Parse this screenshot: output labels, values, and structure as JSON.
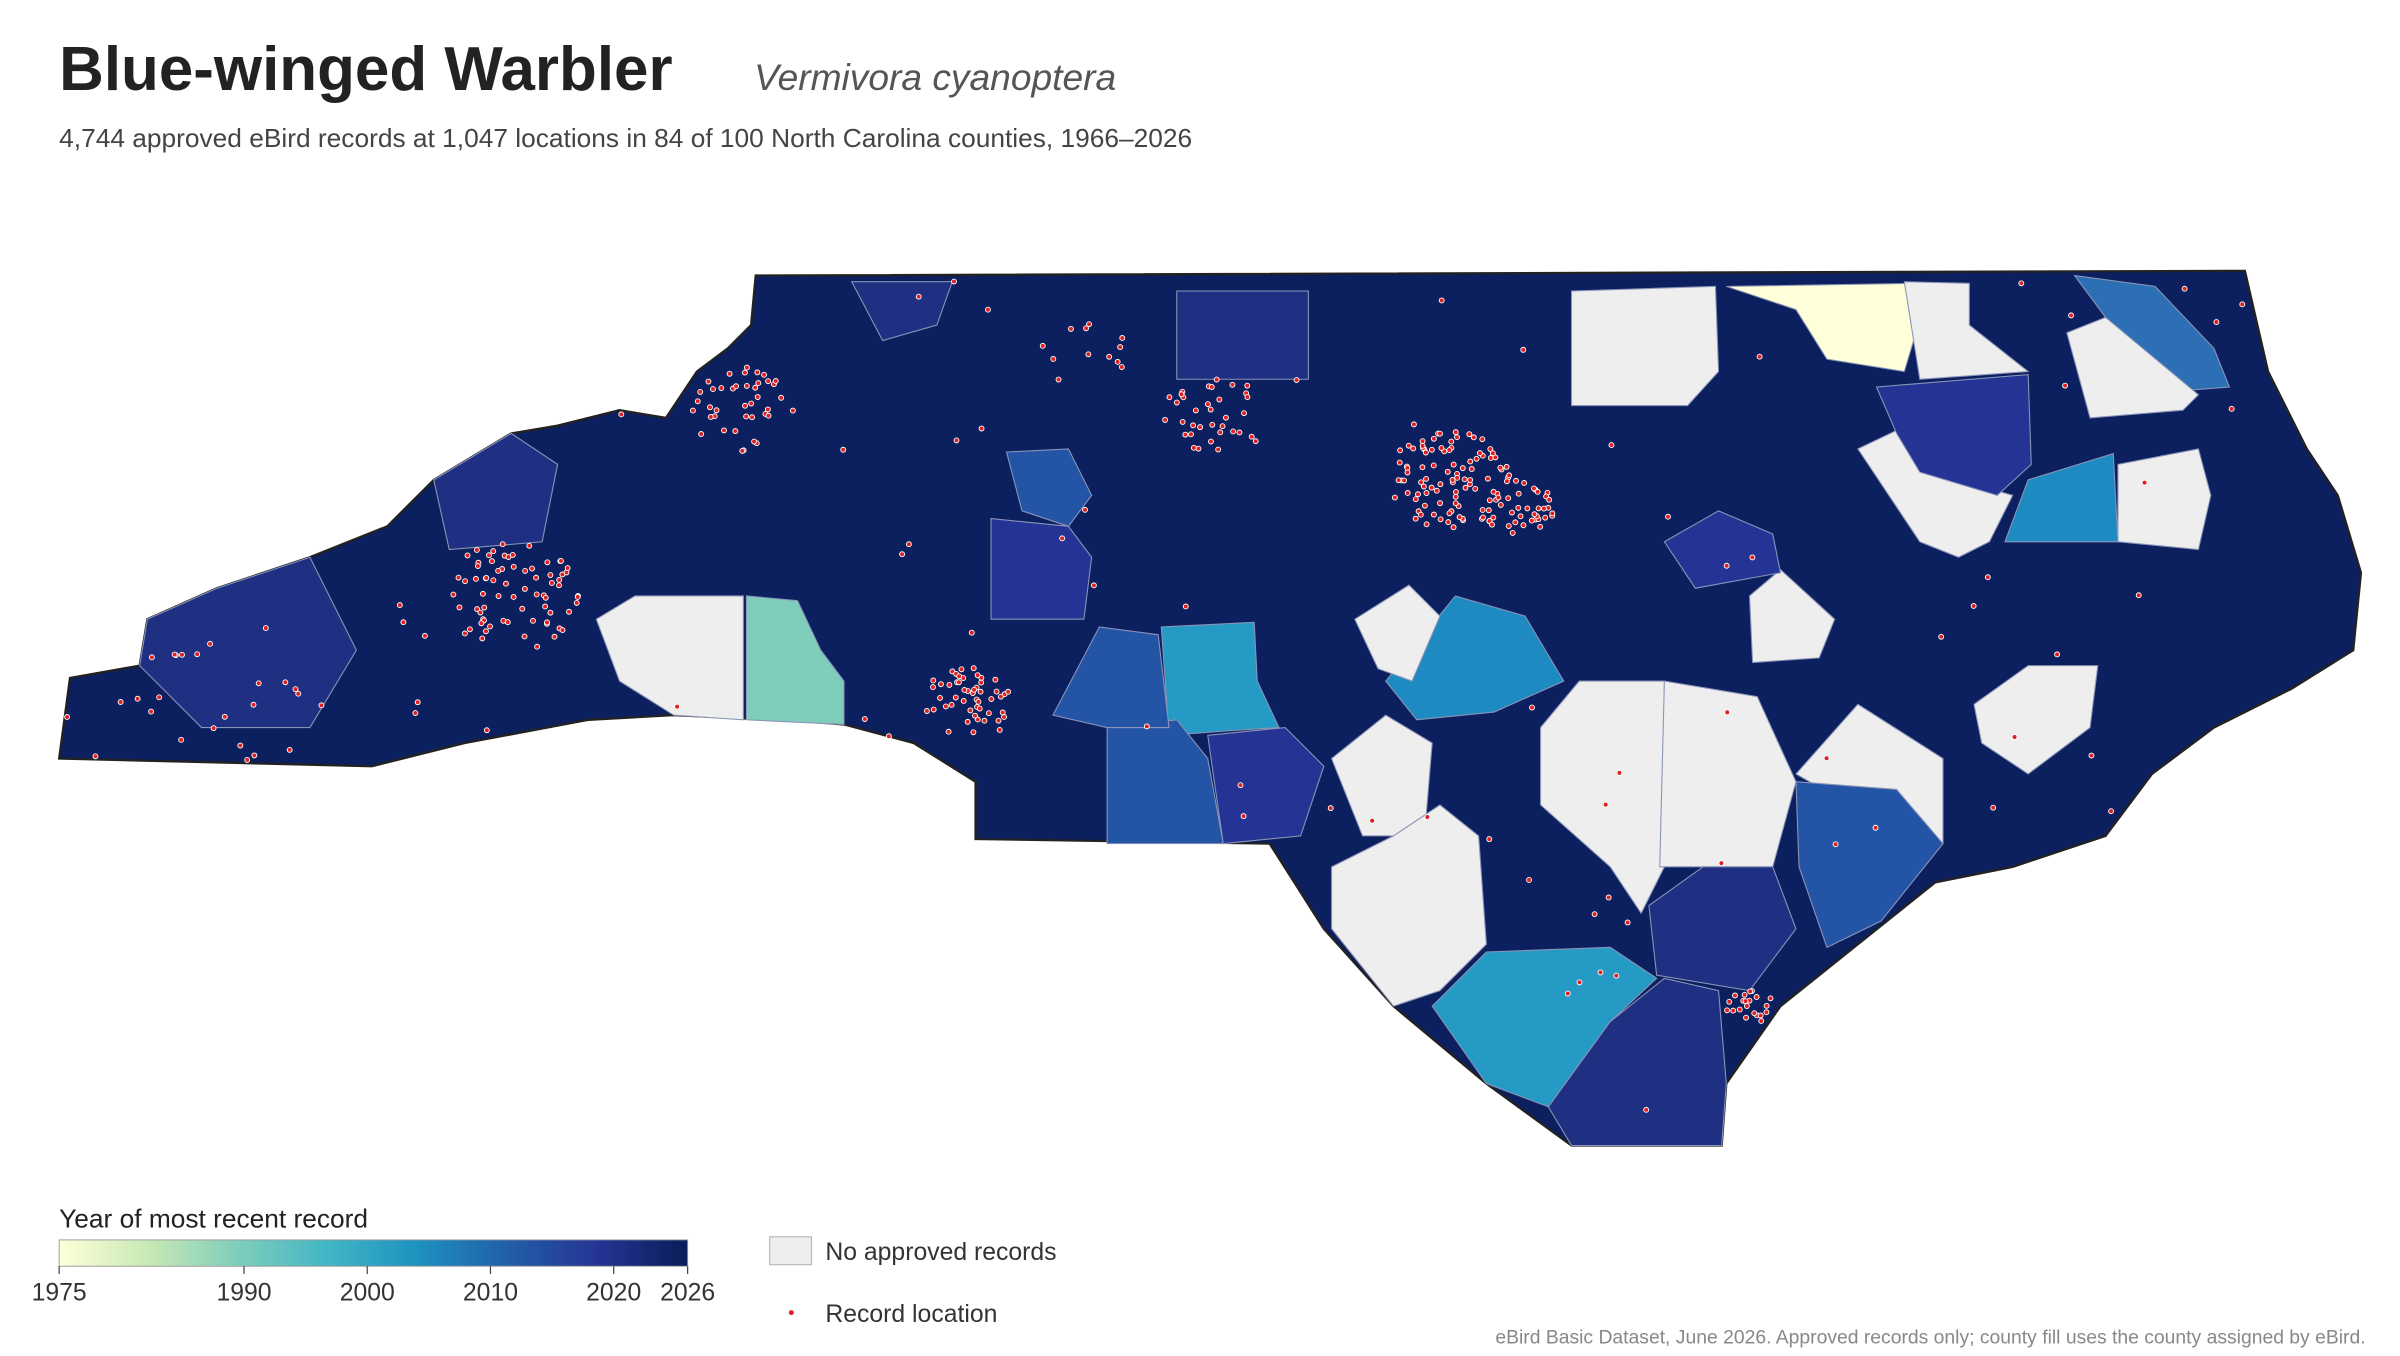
{
  "header": {
    "title": "Blue-winged Warbler",
    "scientific_name": "Vermivora cyanoptera",
    "subtitle": "4,744 approved eBird records at 1,047 locations in 84 of 100 North Carolina counties, 1966–2026"
  },
  "legend": {
    "colorbar": {
      "title": "Year of most recent record",
      "range": [
        1975,
        2026
      ],
      "ticks": [
        1975,
        1990,
        2000,
        2010,
        2020,
        2026
      ],
      "colors": [
        "#ffffd9",
        "#c7e9b4",
        "#7fcdbb",
        "#41b6c4",
        "#1d91c0",
        "#225ea8",
        "#253494",
        "#081d58"
      ]
    },
    "no_records": "No approved records",
    "record_location": "Record location"
  },
  "footer": "eBird Basic Dataset, June 2026. Approved records only; county fill uses the county assigned by eBird."
}
